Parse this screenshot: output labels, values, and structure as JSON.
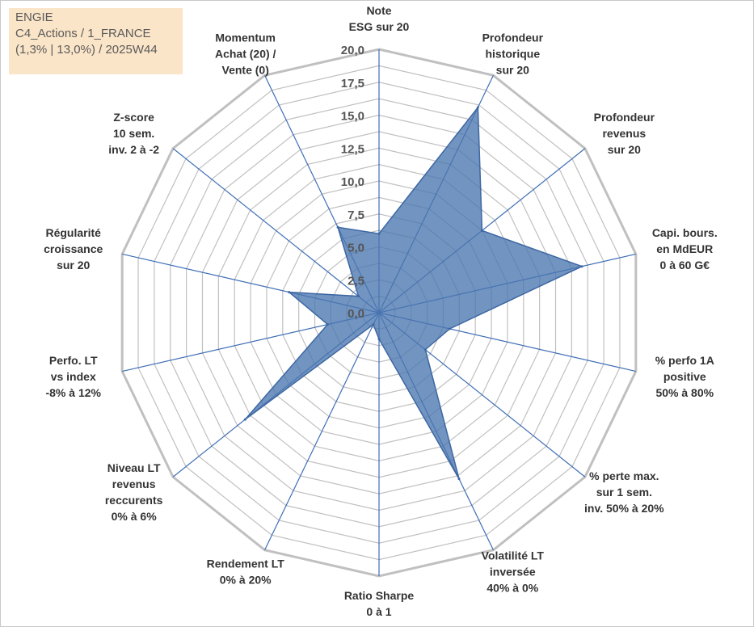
{
  "header": {
    "line1": "ENGIE",
    "line2": "C4_Actions / 1_FRANCE",
    "line3": "(1,3% | 13,0%) / 2025W44"
  },
  "chart_data": {
    "type": "radar",
    "title": "",
    "rmin": 0,
    "rmax": 20,
    "ticks": [
      "0,0",
      "2,5",
      "5,0",
      "7,5",
      "10,0",
      "12,5",
      "15,0",
      "17,5",
      "20,0"
    ],
    "axes": [
      [
        "Note",
        "ESG sur 20"
      ],
      [
        "Profondeur",
        "historique",
        "sur 20"
      ],
      [
        "Profondeur",
        "revenus",
        "sur 20"
      ],
      [
        "Capi. bours.",
        "en MdEUR",
        "0 à 60 G€"
      ],
      [
        "% perfo 1A",
        "positive",
        "50% à 80%"
      ],
      [
        "% perte max.",
        "sur 1 sem.",
        "inv. 50% à 20%"
      ],
      [
        "Volatilité LT",
        "inversée",
        "40% à 0%"
      ],
      [
        "Ratio Sharpe",
        "0 à 1"
      ],
      [
        "Rendement LT",
        "0% à 20%"
      ],
      [
        "Niveau LT",
        "revenus",
        "reccurents",
        "0% à 6%"
      ],
      [
        "Perfo. LT",
        "vs index",
        "-8% à 12%"
      ],
      [
        "Régularité",
        "croissance",
        "sur 20"
      ],
      [
        "Z-score",
        "10 sem.",
        "inv. 2 à -2"
      ],
      [
        "Momentum",
        "Achat (20) /",
        "Vente (0)"
      ]
    ],
    "series": [
      {
        "name": "ENGIE",
        "values": [
          6.0,
          17.3,
          10.0,
          15.8,
          5.5,
          4.5,
          14.0,
          2.0,
          1.0,
          13.0,
          4.0,
          7.0,
          2.0,
          7.2
        ]
      }
    ],
    "colors": {
      "fill": "#4a76b0",
      "stroke": "#3c67a3",
      "grid": "#c0c0c0",
      "spoke": "#3f6eb5"
    }
  }
}
